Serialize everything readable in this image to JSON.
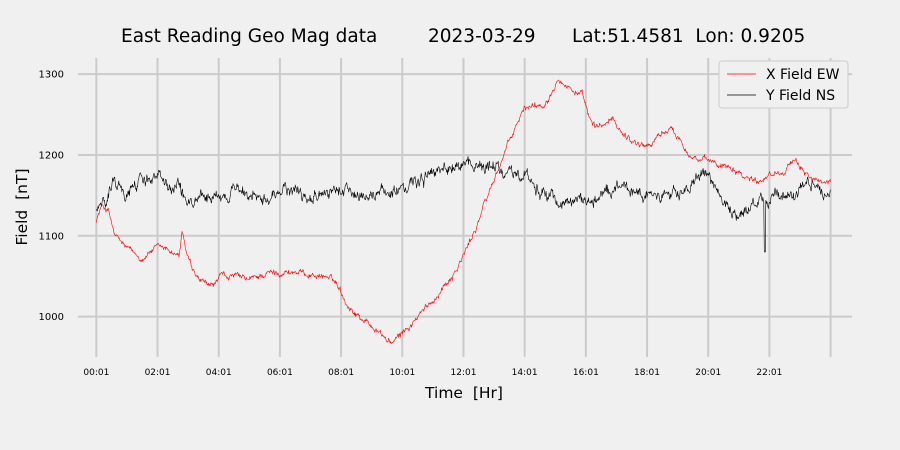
{
  "chart_data": {
    "type": "line",
    "title": {
      "name": "East Reading Geo Mag data",
      "date": "2023-03-29",
      "location": "Lat:51.4581  Lon: 0.9205"
    },
    "xlabel": "Time  [Hr]",
    "ylabel": "Field  [nT]",
    "ylim": [
      950,
      1320
    ],
    "xlim": [
      -0.6,
      24.7
    ],
    "grid": true,
    "legend_position": "top-right",
    "y_ticks": [
      1000,
      1100,
      1200,
      1300
    ],
    "x_tick_positions": [
      0,
      2,
      4,
      6,
      8,
      10,
      12,
      14,
      16,
      18,
      20,
      22,
      24
    ],
    "x_tick_labels": [
      "00:01",
      "02:01",
      "04:01",
      "06:01",
      "08:01",
      "10:01",
      "12:01",
      "14:01",
      "16:01",
      "18:01",
      "20:01",
      "22:01",
      ""
    ],
    "series": [
      {
        "name": "X Field EW",
        "color": "#ff0000",
        "noise": 5,
        "x": [
          0,
          0.2,
          0.4,
          0.6,
          0.9,
          1.2,
          1.5,
          1.8,
          2.1,
          2.4,
          2.7,
          2.8,
          2.95,
          3.2,
          3.5,
          3.8,
          4.1,
          4.5,
          5,
          5.5,
          6,
          6.5,
          7,
          7.5,
          7.9,
          8.2,
          8.5,
          8.8,
          9.1,
          9.4,
          9.6,
          9.8,
          10,
          10.3,
          10.6,
          11,
          11.4,
          11.8,
          12.1,
          12.4,
          12.7,
          13,
          13.3,
          13.6,
          14,
          14.3,
          14.6,
          14.9,
          15.1,
          15.3,
          15.6,
          15.9,
          16.1,
          16.3,
          16.6,
          16.9,
          17.2,
          17.5,
          17.8,
          18.1,
          18.4,
          18.7,
          19,
          19.2,
          19.5,
          19.8,
          20.1,
          20.4,
          20.7,
          21,
          21.3,
          21.6,
          21.9,
          22.2,
          22.5,
          22.8,
          23.1,
          23.4,
          23.7,
          24
        ],
        "values": [
          1120,
          1138,
          1130,
          1100,
          1088,
          1078,
          1072,
          1082,
          1085,
          1082,
          1075,
          1102,
          1078,
          1050,
          1040,
          1038,
          1050,
          1050,
          1045,
          1053,
          1055,
          1055,
          1052,
          1050,
          1040,
          1015,
          1003,
          995,
          985,
          975,
          968,
          970,
          980,
          990,
          1003,
          1020,
          1040,
          1060,
          1083,
          1110,
          1140,
          1170,
          1198,
          1225,
          1258,
          1262,
          1262,
          1280,
          1300,
          1288,
          1280,
          1272,
          1245,
          1233,
          1238,
          1243,
          1228,
          1218,
          1213,
          1212,
          1225,
          1232,
          1225,
          1212,
          1198,
          1192,
          1192,
          1188,
          1188,
          1180,
          1172,
          1168,
          1175,
          1178,
          1183,
          1190,
          1182,
          1172,
          1162,
          1165
        ]
      },
      {
        "name": "Y Field NS",
        "color": "#000000",
        "noise": 10,
        "x": [
          0,
          0.3,
          0.6,
          0.9,
          1.2,
          1.5,
          1.8,
          2.1,
          2.4,
          2.7,
          2.9,
          3.1,
          3.4,
          3.7,
          4,
          4.5,
          5,
          5.5,
          6,
          6.5,
          7,
          7.5,
          8,
          8.5,
          9,
          9.5,
          10,
          10.5,
          11,
          11.5,
          12,
          12.5,
          13,
          13.5,
          14,
          14.5,
          15,
          15.5,
          16,
          16.5,
          17,
          17.5,
          18,
          18.5,
          19,
          19.5,
          19.8,
          20.1,
          20.4,
          20.7,
          21,
          21.3,
          21.7,
          21.9,
          22.2,
          22.6,
          23,
          23.4,
          23.7,
          24
        ],
        "values": [
          1130,
          1142,
          1168,
          1150,
          1160,
          1172,
          1170,
          1168,
          1165,
          1165,
          1140,
          1138,
          1148,
          1152,
          1155,
          1158,
          1155,
          1153,
          1155,
          1153,
          1155,
          1152,
          1155,
          1148,
          1150,
          1152,
          1158,
          1170,
          1180,
          1185,
          1190,
          1192,
          1190,
          1185,
          1182,
          1155,
          1140,
          1135,
          1140,
          1150,
          1160,
          1155,
          1150,
          1145,
          1155,
          1165,
          1175,
          1165,
          1145,
          1130,
          1128,
          1135,
          1140,
          1145,
          1150,
          1148,
          1160,
          1165,
          1158,
          1150
        ],
        "spikes": [
          {
            "x": 21.85,
            "y": 1080
          }
        ]
      }
    ]
  }
}
